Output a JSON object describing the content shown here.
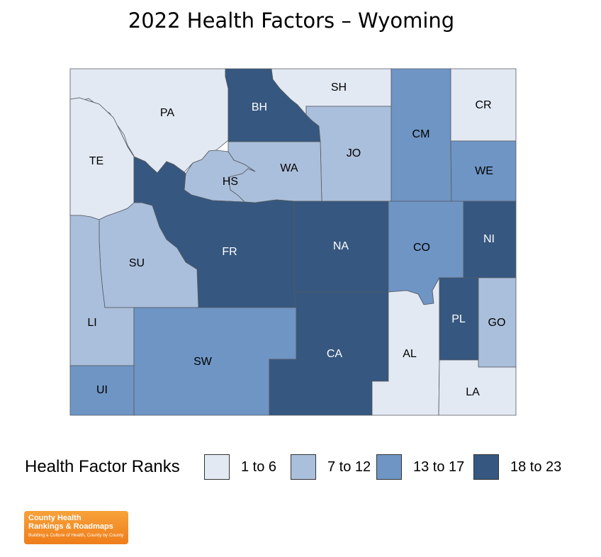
{
  "title": "2022 Health Factors – Wyoming",
  "colors": {
    "rank_1_6": "#e3e9f3",
    "rank_7_12": "#aabfdb",
    "rank_13_17": "#6e95c4",
    "rank_18_23": "#36577f",
    "border": "#555a62"
  },
  "counties": [
    {
      "code": "PA",
      "class": "rank_1_6"
    },
    {
      "code": "BH",
      "class": "rank_18_23"
    },
    {
      "code": "SH",
      "class": "rank_1_6"
    },
    {
      "code": "CM",
      "class": "rank_13_17"
    },
    {
      "code": "CR",
      "class": "rank_1_6"
    },
    {
      "code": "TE",
      "class": "rank_1_6"
    },
    {
      "code": "JO",
      "class": "rank_7_12"
    },
    {
      "code": "WA",
      "class": "rank_7_12"
    },
    {
      "code": "HS",
      "class": "rank_7_12"
    },
    {
      "code": "WE",
      "class": "rank_13_17"
    },
    {
      "code": "FR",
      "class": "rank_18_23"
    },
    {
      "code": "NA",
      "class": "rank_18_23"
    },
    {
      "code": "CO",
      "class": "rank_13_17"
    },
    {
      "code": "NI",
      "class": "rank_18_23"
    },
    {
      "code": "SU",
      "class": "rank_7_12"
    },
    {
      "code": "LI",
      "class": "rank_7_12"
    },
    {
      "code": "SW",
      "class": "rank_13_17"
    },
    {
      "code": "CA",
      "class": "rank_18_23"
    },
    {
      "code": "AL",
      "class": "rank_1_6"
    },
    {
      "code": "PL",
      "class": "rank_18_23"
    },
    {
      "code": "GO",
      "class": "rank_7_12"
    },
    {
      "code": "UI",
      "class": "rank_13_17"
    },
    {
      "code": "LA",
      "class": "rank_1_6"
    }
  ],
  "legend": {
    "title": "Health Factor Ranks",
    "items": [
      {
        "label": "1 to 6",
        "class": "rank_1_6"
      },
      {
        "label": "7 to 12",
        "class": "rank_7_12"
      },
      {
        "label": "13 to 17",
        "class": "rank_13_17"
      },
      {
        "label": "18 to 23",
        "class": "rank_18_23"
      }
    ]
  },
  "logo": {
    "line1": "County Health",
    "line2": "Rankings & Roadmaps",
    "tagline": "Building a Culture of Health, County by County"
  }
}
